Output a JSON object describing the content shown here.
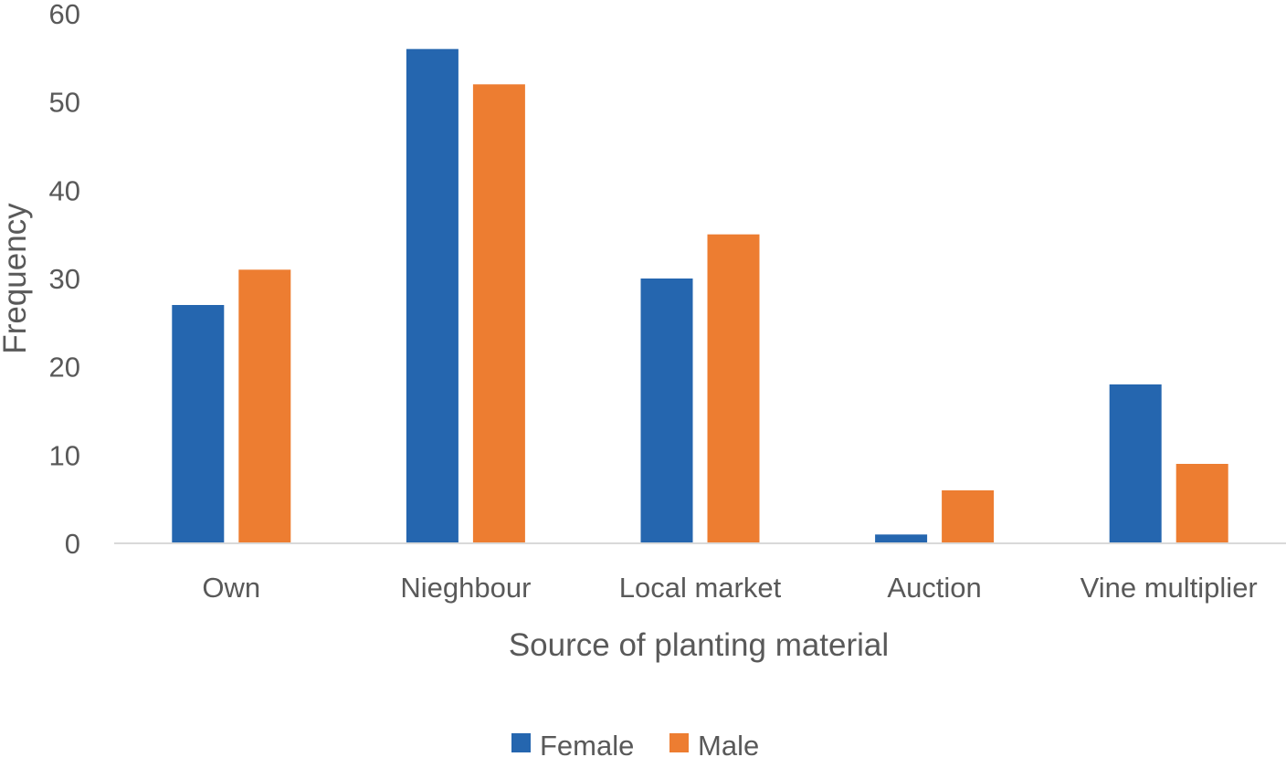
{
  "chart_data": {
    "type": "bar",
    "title": "",
    "xlabel": "Source of planting material",
    "ylabel": "Frequency",
    "categories": [
      "Own",
      "Nieghbour",
      "Local market",
      "Auction",
      "Vine multiplier"
    ],
    "series": [
      {
        "name": "Female",
        "color": "#2566AF",
        "values": [
          27,
          56,
          30,
          1,
          18
        ]
      },
      {
        "name": "Male",
        "color": "#ED7D31",
        "values": [
          31,
          52,
          35,
          6,
          9
        ]
      }
    ],
    "ylim": [
      0,
      60
    ],
    "yticks": [
      0,
      10,
      20,
      30,
      40,
      50,
      60
    ],
    "grid": false,
    "legend_position": "bottom",
    "axis_color": "#D9D9D9",
    "text_color": "#595959"
  }
}
